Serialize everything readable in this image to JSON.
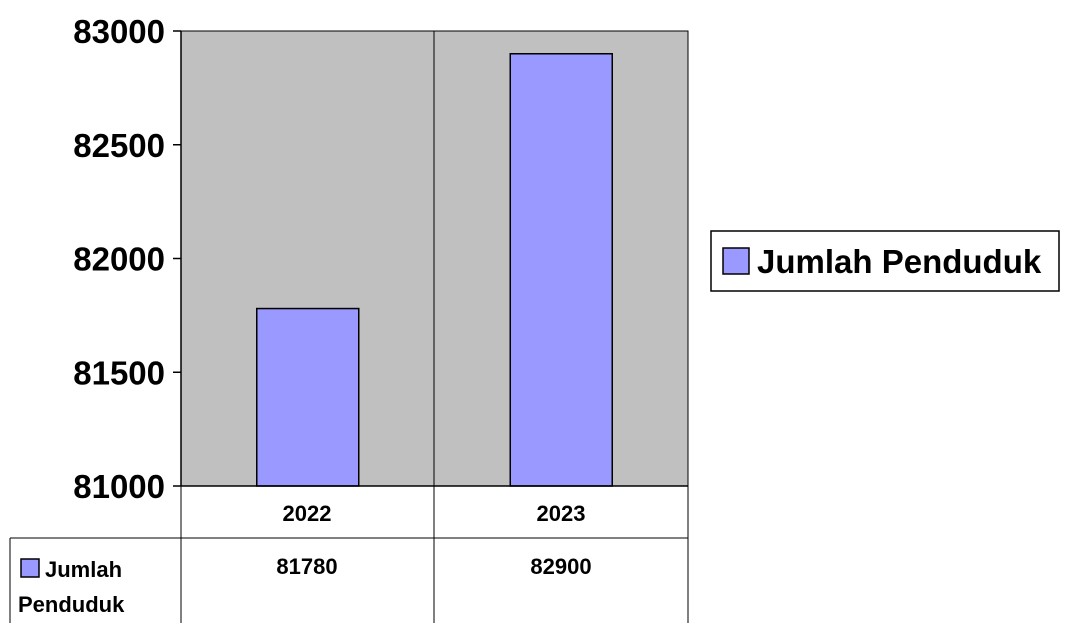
{
  "chart_data": {
    "type": "bar",
    "categories": [
      "2022",
      "2023"
    ],
    "series": [
      {
        "name": "Jumlah Penduduk",
        "values": [
          81780,
          82900
        ]
      }
    ],
    "title": "",
    "xlabel": "",
    "ylabel": "",
    "ylim": [
      81000,
      83000
    ],
    "yticks": [
      81000,
      81500,
      82000,
      82500,
      83000
    ],
    "grid": false,
    "legend": "right",
    "data_table": true,
    "colors": {
      "bar": "#9999ff",
      "plot_background": "#c0c0c0",
      "border": "#000000"
    }
  },
  "legend": {
    "label": "Jumlah Penduduk"
  },
  "data_table": {
    "headers": [
      "2022",
      "2023"
    ],
    "row_label_line1": "Jumlah",
    "row_label_line2": "Penduduk",
    "values": [
      "81780",
      "82900"
    ]
  }
}
